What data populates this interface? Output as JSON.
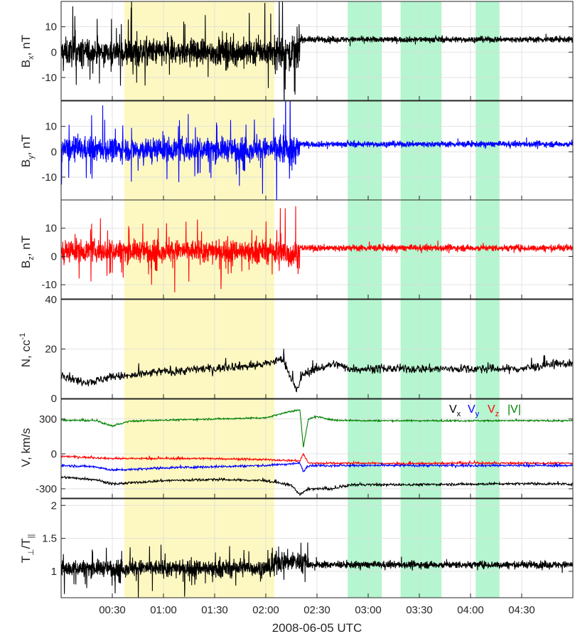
{
  "chart_data": {
    "type": "line",
    "x_axis": {
      "label": "2008-06-05 UTC",
      "unit": "minutes after 00:00 UTC",
      "range": [
        0,
        300
      ],
      "ticks": [
        30,
        60,
        90,
        120,
        150,
        180,
        210,
        240,
        270
      ],
      "tick_labels": [
        "00:30",
        "01:00",
        "01:30",
        "02:00",
        "02:30",
        "03:00",
        "03:30",
        "04:00",
        "04:30"
      ],
      "grid": true
    },
    "highlight_bands": [
      {
        "start": 37,
        "end": 125,
        "color": "#fdf8c2"
      },
      {
        "start": 168,
        "end": 188,
        "color": "#b5f5cf"
      },
      {
        "start": 199,
        "end": 223,
        "color": "#b5f5cf"
      },
      {
        "start": 243,
        "end": 257,
        "color": "#b5f5cf"
      }
    ],
    "panels": [
      {
        "id": "bx",
        "ylabel": "B",
        "ylabel_sub": "x",
        "ylabel_unit": ", nT",
        "ylim": [
          -19,
          20
        ],
        "yticks": [
          -10,
          0,
          10
        ],
        "series": [
          {
            "color": "#000000",
            "segments": [
              [
                0,
                125,
                0,
                7,
                3
              ],
              [
                125,
                140,
                0,
                9,
                4
              ],
              [
                140,
                300,
                5,
                1.5,
                1.5
              ]
            ]
          }
        ]
      },
      {
        "id": "by",
        "ylabel": "B",
        "ylabel_sub": "y",
        "ylabel_unit": ", nT",
        "ylim": [
          -19,
          20
        ],
        "yticks": [
          -10,
          0,
          10
        ],
        "series": [
          {
            "color": "#0000ff",
            "segments": [
              [
                0,
                125,
                1,
                6,
                3
              ],
              [
                125,
                140,
                1,
                8,
                4
              ],
              [
                140,
                300,
                3,
                1.5,
                1.5
              ]
            ]
          }
        ]
      },
      {
        "id": "bz",
        "ylabel": "B",
        "ylabel_sub": "z",
        "ylabel_unit": ", nT",
        "ylim": [
          -15,
          20
        ],
        "yticks": [
          -10,
          0,
          10
        ],
        "series": [
          {
            "color": "#ff0000",
            "segments": [
              [
                0,
                125,
                2,
                5,
                3
              ],
              [
                125,
                140,
                1,
                7,
                4
              ],
              [
                140,
                300,
                3,
                1.5,
                1.5
              ]
            ]
          }
        ]
      },
      {
        "id": "n",
        "ylabel": "N, cc",
        "ylabel_sup": "-1",
        "ylim": [
          0,
          40
        ],
        "yticks": [
          0,
          20,
          40
        ],
        "series": [
          {
            "color": "#000000",
            "points": [
              [
                0,
                10
              ],
              [
                10,
                7
              ],
              [
                20,
                7
              ],
              [
                30,
                9
              ],
              [
                40,
                9
              ],
              [
                50,
                10
              ],
              [
                60,
                11
              ],
              [
                70,
                11
              ],
              [
                80,
                12
              ],
              [
                90,
                12
              ],
              [
                100,
                13
              ],
              [
                110,
                13
              ],
              [
                120,
                14
              ],
              [
                125,
                15
              ],
              [
                130,
                16
              ],
              [
                135,
                8
              ],
              [
                138,
                3
              ],
              [
                142,
                10
              ],
              [
                150,
                12
              ],
              [
                160,
                14
              ],
              [
                170,
                12
              ],
              [
                180,
                12
              ],
              [
                190,
                12
              ],
              [
                200,
                12
              ],
              [
                210,
                12
              ],
              [
                220,
                12
              ],
              [
                230,
                12
              ],
              [
                240,
                12
              ],
              [
                250,
                12
              ],
              [
                260,
                12
              ],
              [
                270,
                12
              ],
              [
                280,
                13
              ],
              [
                290,
                14
              ],
              [
                300,
                14
              ]
            ],
            "noise": 2.5
          }
        ]
      },
      {
        "id": "v",
        "ylabel": "V, km/s",
        "ylim": [
          -380,
          470
        ],
        "yticks": [
          -300,
          0,
          300
        ],
        "legend": [
          {
            "text": "V",
            "sub": "x",
            "color": "#000000"
          },
          {
            "text": "V",
            "sub": "y",
            "color": "#0000ff"
          },
          {
            "text": "V",
            "sub": "z",
            "color": "#ff0000"
          },
          {
            "text": "|V|",
            "color": "#008000"
          }
        ],
        "series": [
          {
            "color": "#008000",
            "points": [
              [
                0,
                290
              ],
              [
                20,
                285
              ],
              [
                30,
                240
              ],
              [
                40,
                280
              ],
              [
                60,
                290
              ],
              [
                90,
                300
              ],
              [
                120,
                310
              ],
              [
                130,
                350
              ],
              [
                140,
                380
              ],
              [
                142,
                60
              ],
              [
                145,
                300
              ],
              [
                150,
                320
              ],
              [
                160,
                290
              ],
              [
                180,
                285
              ],
              [
                200,
                285
              ],
              [
                240,
                285
              ],
              [
                270,
                285
              ],
              [
                300,
                285
              ]
            ],
            "noise": 10
          },
          {
            "color": "#ff0000",
            "points": [
              [
                0,
                -20
              ],
              [
                30,
                -40
              ],
              [
                60,
                -40
              ],
              [
                90,
                -40
              ],
              [
                120,
                -50
              ],
              [
                140,
                -60
              ],
              [
                142,
                0
              ],
              [
                145,
                -80
              ],
              [
                160,
                -80
              ],
              [
                180,
                -80
              ],
              [
                200,
                -85
              ],
              [
                230,
                -80
              ],
              [
                260,
                -80
              ],
              [
                300,
                -80
              ]
            ],
            "noise": 12
          },
          {
            "color": "#0000ff",
            "points": [
              [
                0,
                -100
              ],
              [
                20,
                -110
              ],
              [
                30,
                -140
              ],
              [
                60,
                -120
              ],
              [
                90,
                -110
              ],
              [
                120,
                -100
              ],
              [
                140,
                -80
              ],
              [
                142,
                -150
              ],
              [
                145,
                -100
              ],
              [
                160,
                -100
              ],
              [
                200,
                -100
              ],
              [
                240,
                -100
              ],
              [
                270,
                -100
              ],
              [
                300,
                -100
              ]
            ],
            "noise": 14
          },
          {
            "color": "#000000",
            "points": [
              [
                0,
                -200
              ],
              [
                20,
                -220
              ],
              [
                30,
                -260
              ],
              [
                60,
                -230
              ],
              [
                90,
                -220
              ],
              [
                120,
                -230
              ],
              [
                135,
                -270
              ],
              [
                140,
                -350
              ],
              [
                145,
                -300
              ],
              [
                160,
                -300
              ],
              [
                170,
                -265
              ],
              [
                200,
                -265
              ],
              [
                240,
                -260
              ],
              [
                270,
                -255
              ],
              [
                300,
                -260
              ]
            ],
            "noise": 15
          }
        ]
      },
      {
        "id": "t",
        "ylabel": "T",
        "ylabel_sub": "⊥",
        "ylabel_mid": "/T",
        "ylabel_sub2": "||",
        "ylim": [
          0.6,
          2.1
        ],
        "yticks": [
          1,
          1.5,
          2
        ],
        "series": [
          {
            "color": "#000000",
            "segments": [
              [
                0,
                125,
                1.05,
                0.16,
                3
              ],
              [
                125,
                145,
                1.15,
                0.2,
                3
              ],
              [
                145,
                300,
                1.1,
                0.07,
                1.5
              ]
            ]
          }
        ]
      }
    ]
  }
}
